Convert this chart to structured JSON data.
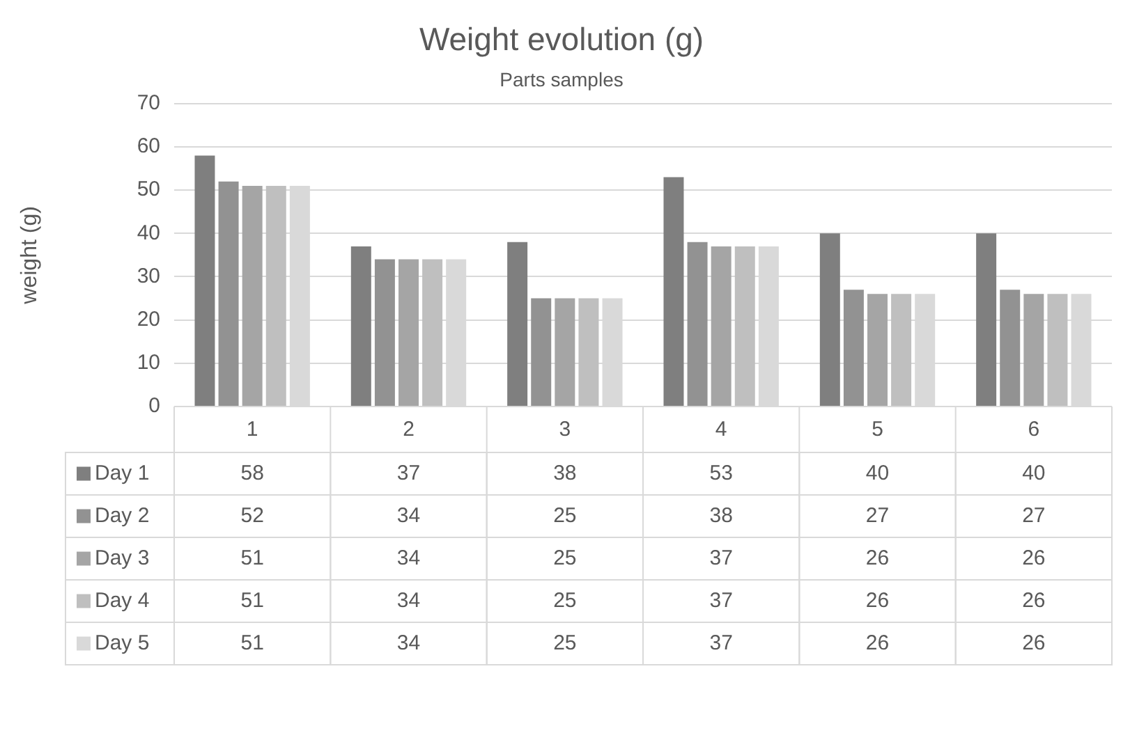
{
  "chart_data": {
    "type": "bar",
    "title": "Weight evolution (g)",
    "subtitle": "Parts samples",
    "ylabel": "weight (g)",
    "categories": [
      "1",
      "2",
      "3",
      "4",
      "5",
      "6"
    ],
    "series": [
      {
        "name": "Day 1",
        "color": "#7f7f7f",
        "values": [
          58,
          37,
          38,
          53,
          40,
          40
        ]
      },
      {
        "name": "Day 2",
        "color": "#929292",
        "values": [
          52,
          34,
          25,
          38,
          27,
          27
        ]
      },
      {
        "name": "Day 3",
        "color": "#a5a5a5",
        "values": [
          51,
          34,
          25,
          37,
          26,
          26
        ]
      },
      {
        "name": "Day 4",
        "color": "#bfbfbf",
        "values": [
          51,
          34,
          25,
          37,
          26,
          26
        ]
      },
      {
        "name": "Day 5",
        "color": "#d9d9d9",
        "values": [
          51,
          34,
          25,
          37,
          26,
          26
        ]
      }
    ],
    "ylim": [
      0,
      70
    ],
    "yticks": [
      0,
      10,
      20,
      30,
      40,
      50,
      60,
      70
    ],
    "grid": "y",
    "data_labels": true,
    "legend": "bottom"
  }
}
